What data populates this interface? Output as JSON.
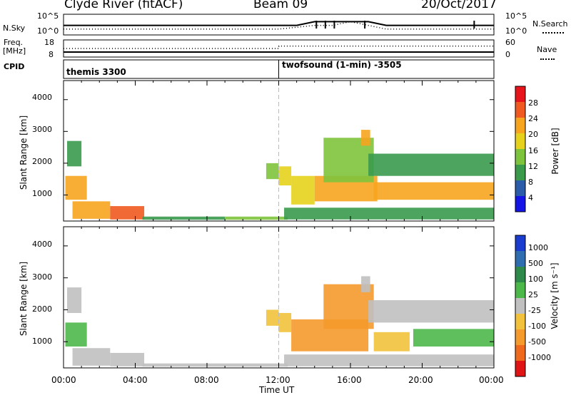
{
  "header": {
    "title": "Clyde River (fitACF)",
    "beam": "Beam 09",
    "date": "20/Oct/2017"
  },
  "panels": {
    "nsky": {
      "left_label": "N.Sky",
      "left_ticks": [
        "10^5",
        "10^0"
      ],
      "right_ticks": [
        "10^5",
        "10^0"
      ],
      "right_label": "N.Search"
    },
    "freq": {
      "left_label_line1": "Freq.",
      "left_label_line2": "[MHz]",
      "left_ticks": [
        "18",
        "8"
      ],
      "right_ticks": [
        "60",
        "0"
      ],
      "right_label": "Nave"
    },
    "cpid": {
      "label": "CPID",
      "modes": [
        "themis 3300",
        "twofsound (1-min) -3505"
      ]
    }
  },
  "axes": {
    "ylabel": "Slant Range [km]",
    "xlabel": "Time UT",
    "y_ticks": [
      "1000",
      "2000",
      "3000",
      "4000"
    ],
    "x_ticks": [
      "00:00",
      "04:00",
      "08:00",
      "12:00",
      "16:00",
      "20:00",
      "00:00"
    ]
  },
  "colorbars": {
    "power": {
      "label": "Power [dB]",
      "ticks": [
        "28",
        "24",
        "20",
        "16",
        "12",
        "8",
        "4"
      ],
      "colors": [
        "#e8141c",
        "#f05a20",
        "#f7a41e",
        "#e6d21c",
        "#7ec33c",
        "#3a9a4c",
        "#2a5caa",
        "#1414e6"
      ]
    },
    "velocity": {
      "label": "Velocity [m s⁻¹]",
      "ticks": [
        "1000",
        "500",
        "100",
        "25",
        "-25",
        "-100",
        "-500",
        "-1000"
      ],
      "colors": [
        "#1a3ccf",
        "#2e6db0",
        "#2e8a4a",
        "#4cb84a",
        "#c0c0c0",
        "#f2c23c",
        "#f59a2c",
        "#f06a1e",
        "#e01414"
      ]
    }
  },
  "chart_data": [
    {
      "type": "line",
      "title": "Clyde River (fitACF)",
      "series": [
        {
          "name": "N.Sky",
          "x": [
            0,
            1,
            2,
            3,
            4,
            5,
            6,
            7,
            8,
            9,
            10,
            11,
            12,
            13,
            14,
            15,
            16,
            17,
            18,
            19,
            20,
            21,
            22,
            23,
            24
          ],
          "values": [
            2,
            2,
            2,
            2,
            2,
            2,
            2,
            2,
            2,
            2,
            2,
            2,
            2,
            2,
            3,
            3,
            3,
            3,
            2,
            2,
            2,
            2,
            2,
            2,
            2
          ]
        },
        {
          "name": "N.Search",
          "x": [
            0,
            4,
            8,
            12,
            14,
            15,
            16,
            17,
            18,
            20,
            22,
            24
          ],
          "values": [
            1,
            1,
            1,
            1,
            2,
            2,
            3,
            2,
            1,
            1,
            1,
            1
          ]
        }
      ],
      "xlabel": "",
      "ylabel": "N.Sky",
      "ylim": [
        0,
        5
      ]
    },
    {
      "type": "line",
      "series": [
        {
          "name": "Freq.",
          "x": [
            0,
            12,
            12.01,
            24
          ],
          "values": [
            10.5,
            10.5,
            10.5,
            10.5
          ]
        },
        {
          "name": "Nave",
          "x": [
            0,
            12,
            12.01,
            24
          ],
          "values": [
            30,
            30,
            40,
            40
          ]
        }
      ],
      "ylabel": "Freq. [MHz]",
      "ylim": [
        8,
        18
      ]
    },
    {
      "type": "heatmap",
      "quantity": "Power [dB]",
      "xlim": [
        0,
        24
      ],
      "ylim": [
        180,
        4600
      ],
      "xlabel": "",
      "ylabel": "Slant Range [km]",
      "scale": [
        0,
        32
      ],
      "regions": [
        {
          "t0": 0.1,
          "t1": 1.3,
          "r0": 850,
          "r1": 1600,
          "value": 20
        },
        {
          "t0": 0.2,
          "t1": 1.0,
          "r0": 1900,
          "r1": 2700,
          "value": 8
        },
        {
          "t0": 0.5,
          "t1": 2.6,
          "r0": 250,
          "r1": 800,
          "value": 22
        },
        {
          "t0": 2.6,
          "t1": 4.5,
          "r0": 230,
          "r1": 650,
          "value": 24
        },
        {
          "t0": 4.4,
          "t1": 9.0,
          "r0": 220,
          "r1": 320,
          "value": 10
        },
        {
          "t0": 9.0,
          "t1": 12.5,
          "r0": 220,
          "r1": 320,
          "value": 12
        },
        {
          "t0": 11.3,
          "t1": 12.0,
          "r0": 1500,
          "r1": 2000,
          "value": 14
        },
        {
          "t0": 12.0,
          "t1": 12.7,
          "r0": 1300,
          "r1": 1900,
          "value": 16
        },
        {
          "t0": 12.7,
          "t1": 14.0,
          "r0": 700,
          "r1": 1600,
          "value": 16
        },
        {
          "t0": 14.0,
          "t1": 17.5,
          "r0": 800,
          "r1": 1600,
          "value": 20
        },
        {
          "t0": 14.5,
          "t1": 17.3,
          "r0": 1400,
          "r1": 2800,
          "value": 14
        },
        {
          "t0": 16.6,
          "t1": 17.1,
          "r0": 2550,
          "r1": 3050,
          "value": 20
        },
        {
          "t0": 17.3,
          "t1": 24.0,
          "r0": 850,
          "r1": 1400,
          "value": 20
        },
        {
          "t0": 17.0,
          "t1": 24.0,
          "r0": 1600,
          "r1": 2300,
          "value": 10
        },
        {
          "t0": 12.3,
          "t1": 24.0,
          "r0": 230,
          "r1": 600,
          "value": 10
        }
      ]
    },
    {
      "type": "heatmap",
      "quantity": "Velocity [m s⁻¹]",
      "xlim": [
        0,
        24
      ],
      "ylim": [
        180,
        4600
      ],
      "xlabel": "Time UT",
      "ylabel": "Slant Range [km]",
      "scale": [
        -1000,
        1000
      ],
      "regions": [
        {
          "t0": 0.1,
          "t1": 1.3,
          "r0": 850,
          "r1": 1600,
          "value": 200
        },
        {
          "t0": 0.2,
          "t1": 1.0,
          "r0": 1900,
          "r1": 2700,
          "value": 0
        },
        {
          "t0": 0.5,
          "t1": 2.6,
          "r0": 250,
          "r1": 800,
          "value": 50
        },
        {
          "t0": 2.6,
          "t1": 4.5,
          "r0": 230,
          "r1": 650,
          "value": 60
        },
        {
          "t0": 4.4,
          "t1": 12.5,
          "r0": 220,
          "r1": 320,
          "value": -60
        },
        {
          "t0": 11.3,
          "t1": 12.0,
          "r0": 1500,
          "r1": 2000,
          "value": -300
        },
        {
          "t0": 12.0,
          "t1": 12.7,
          "r0": 1300,
          "r1": 1900,
          "value": -300
        },
        {
          "t0": 12.7,
          "t1": 17.0,
          "r0": 700,
          "r1": 1700,
          "value": -500
        },
        {
          "t0": 14.5,
          "t1": 17.3,
          "r0": 1400,
          "r1": 2800,
          "value": -400
        },
        {
          "t0": 16.6,
          "t1": 17.1,
          "r0": 2550,
          "r1": 3050,
          "value": 0
        },
        {
          "t0": 17.3,
          "t1": 19.3,
          "r0": 700,
          "r1": 1300,
          "value": -150
        },
        {
          "t0": 19.5,
          "t1": 24.0,
          "r0": 850,
          "r1": 1400,
          "value": 120
        },
        {
          "t0": 17.0,
          "t1": 24.0,
          "r0": 1600,
          "r1": 2300,
          "value": 0
        },
        {
          "t0": 12.3,
          "t1": 24.0,
          "r0": 230,
          "r1": 600,
          "value": -60
        }
      ]
    }
  ]
}
